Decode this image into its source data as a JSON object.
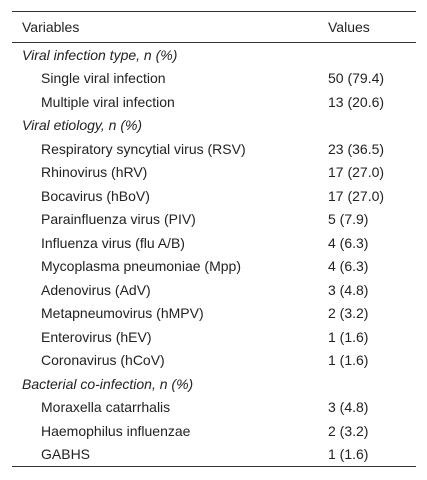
{
  "table": {
    "columns": [
      "Variables",
      "Values"
    ],
    "sections": [
      {
        "title": "Viral infection type, n (%)",
        "rows": [
          [
            "Single viral infection",
            "50 (79.4)"
          ],
          [
            "Multiple viral infection",
            "13 (20.6)"
          ]
        ]
      },
      {
        "title": "Viral etiology, n (%)",
        "rows": [
          [
            "Respiratory syncytial virus (RSV)",
            "23 (36.5)"
          ],
          [
            "Rhinovirus (hRV)",
            "17 (27.0)"
          ],
          [
            "Bocavirus (hBoV)",
            "17 (27.0)"
          ],
          [
            "Parainfluenza virus (PIV)",
            "5 (7.9)"
          ],
          [
            "Influenza virus (flu A/B)",
            "4 (6.3)"
          ],
          [
            "Mycoplasma pneumoniae (Mpp)",
            "4 (6.3)"
          ],
          [
            "Adenovirus (AdV)",
            "3 (4.8)"
          ],
          [
            "Metapneumovirus (hMPV)",
            "2 (3.2)"
          ],
          [
            "Enterovirus (hEV)",
            "1 (1.6)"
          ],
          [
            "Coronavirus (hCoV)",
            "1 (1.6)"
          ]
        ]
      },
      {
        "title": "Bacterial co-infection, n (%)",
        "rows": [
          [
            "Moraxella catarrhalis",
            "3 (4.8)"
          ],
          [
            "Haemophilus influenzae",
            "2 (3.2)"
          ],
          [
            "GABHS",
            "1 (1.6)"
          ]
        ]
      }
    ]
  }
}
